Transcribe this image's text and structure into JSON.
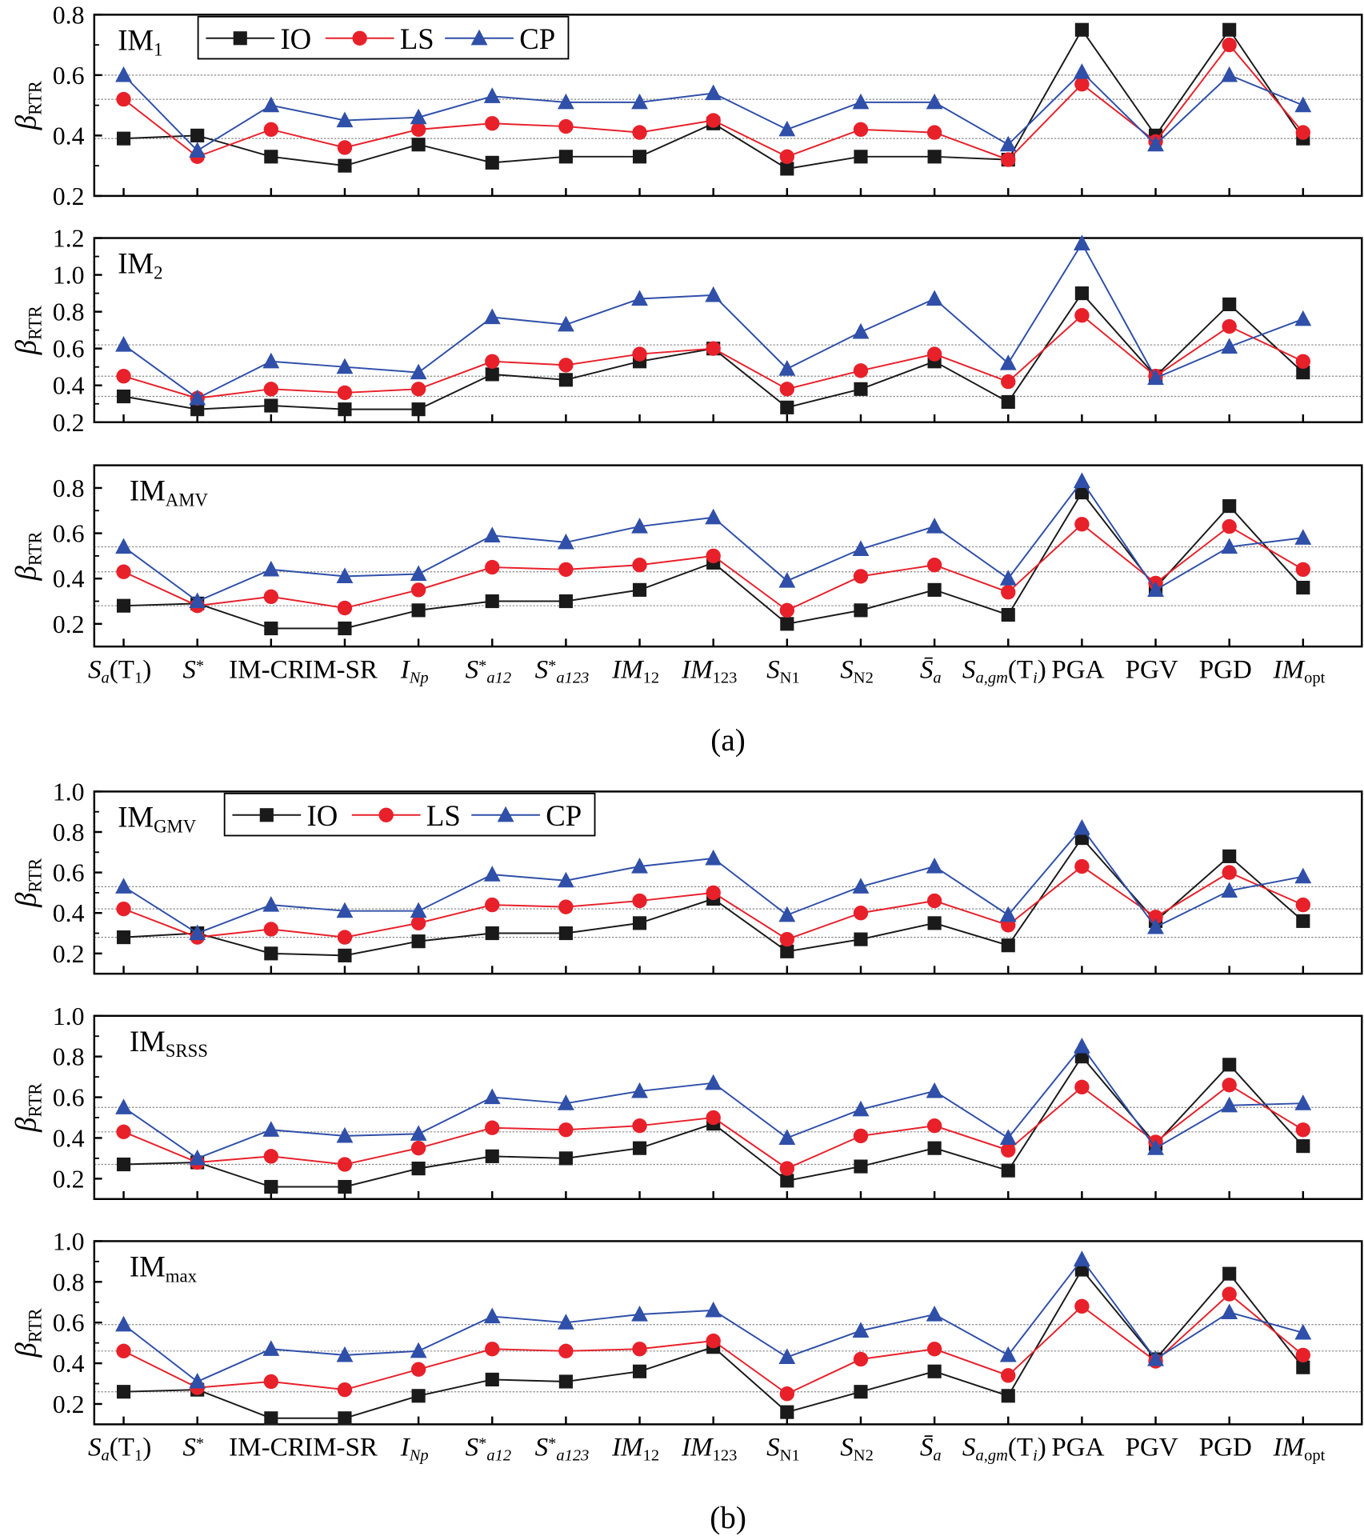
{
  "colors": {
    "IO": "#1a1a1a",
    "LS": "#e8202a",
    "CP": "#2f4fa8",
    "refline": "#888888"
  },
  "legend": [
    "IO",
    "LS",
    "CP"
  ],
  "captions": [
    "(a)",
    "(b)"
  ],
  "ylabel": {
    "main": "β",
    "sub": "RTR"
  },
  "x_labels": [
    [
      {
        "t": "S",
        "i": 1
      },
      {
        "t": "a",
        "i": 1,
        "sub": 1
      },
      {
        "t": "(T"
      },
      {
        "t": "1",
        "sub": 1
      },
      {
        "t": ")"
      }
    ],
    [
      {
        "t": "S",
        "i": 1
      },
      {
        "t": "*",
        "sup": 1
      }
    ],
    [
      {
        "t": "IM-CR"
      }
    ],
    [
      {
        "t": "IM-SR"
      }
    ],
    [
      {
        "t": "I",
        "i": 1
      },
      {
        "t": "Np",
        "i": 1,
        "sub": 1
      }
    ],
    [
      {
        "t": "S",
        "i": 1
      },
      {
        "t": "*",
        "sup": 1
      },
      {
        "t": "a12",
        "i": 1,
        "sub": 1
      }
    ],
    [
      {
        "t": "S",
        "i": 1
      },
      {
        "t": "*",
        "sup": 1
      },
      {
        "t": "a123",
        "i": 1,
        "sub": 1
      }
    ],
    [
      {
        "t": "IM",
        "i": 1
      },
      {
        "t": "12",
        "sub": 1
      }
    ],
    [
      {
        "t": "IM",
        "i": 1
      },
      {
        "t": "123",
        "sub": 1
      }
    ],
    [
      {
        "t": "S",
        "i": 1
      },
      {
        "t": "N1",
        "sub": 1
      }
    ],
    [
      {
        "t": "S",
        "i": 1
      },
      {
        "t": "N2",
        "sub": 1
      }
    ],
    [
      {
        "t": "S̄",
        "i": 1
      },
      {
        "t": "a",
        "i": 1,
        "sub": 1
      }
    ],
    [
      {
        "t": "S",
        "i": 1
      },
      {
        "t": "a,gm",
        "i": 1,
        "sub": 1
      },
      {
        "t": "(T"
      },
      {
        "t": "i",
        "i": 1,
        "sub": 1
      },
      {
        "t": ")"
      }
    ],
    [
      {
        "t": "PGA"
      }
    ],
    [
      {
        "t": "PGV"
      }
    ],
    [
      {
        "t": "PGD"
      }
    ],
    [
      {
        "t": "IM",
        "i": 1
      },
      {
        "t": "opt",
        "sub": 1
      }
    ]
  ],
  "chart_data": [
    {
      "type": "line",
      "title": {
        "main": "IM",
        "sub": "1"
      },
      "ylim": [
        0.2,
        0.8
      ],
      "yticks": [
        "0.2",
        "0.4",
        "0.6",
        "0.8"
      ],
      "ytick_values": [
        0.2,
        0.4,
        0.6,
        0.8
      ],
      "legend": true,
      "series": [
        {
          "name": "IO",
          "values": [
            0.39,
            0.4,
            0.33,
            0.3,
            0.37,
            0.31,
            0.33,
            0.33,
            0.44,
            0.29,
            0.33,
            0.33,
            0.32,
            0.75,
            0.4,
            0.75,
            0.39
          ]
        },
        {
          "name": "LS",
          "values": [
            0.52,
            0.33,
            0.42,
            0.36,
            0.42,
            0.44,
            0.43,
            0.41,
            0.45,
            0.33,
            0.42,
            0.41,
            0.32,
            0.57,
            0.38,
            0.7,
            0.41
          ]
        },
        {
          "name": "CP",
          "values": [
            0.6,
            0.35,
            0.5,
            0.45,
            0.46,
            0.53,
            0.51,
            0.51,
            0.54,
            0.42,
            0.51,
            0.51,
            0.37,
            0.61,
            0.37,
            0.6,
            0.5
          ]
        }
      ]
    },
    {
      "type": "line",
      "title": {
        "main": "IM",
        "sub": "2"
      },
      "ylim": [
        0.2,
        1.2
      ],
      "yticks": [
        "0.2",
        "0.4",
        "0.6",
        "0.8",
        "1.0",
        "1.2"
      ],
      "ytick_values": [
        0.2,
        0.4,
        0.6,
        0.8,
        1.0,
        1.2
      ],
      "legend": false,
      "series": [
        {
          "name": "IO",
          "values": [
            0.34,
            0.27,
            0.29,
            0.27,
            0.27,
            0.46,
            0.43,
            0.53,
            0.6,
            0.28,
            0.38,
            0.53,
            0.31,
            0.9,
            0.45,
            0.84,
            0.47
          ]
        },
        {
          "name": "LS",
          "values": [
            0.45,
            0.33,
            0.38,
            0.36,
            0.38,
            0.53,
            0.51,
            0.57,
            0.6,
            0.38,
            0.48,
            0.57,
            0.42,
            0.78,
            0.45,
            0.72,
            0.53
          ]
        },
        {
          "name": "CP",
          "values": [
            0.62,
            0.33,
            0.53,
            0.5,
            0.47,
            0.77,
            0.73,
            0.87,
            0.89,
            0.49,
            0.69,
            0.87,
            0.52,
            1.17,
            0.44,
            0.61,
            0.76
          ]
        }
      ]
    },
    {
      "type": "line",
      "title": {
        "main": "IM",
        "sub": "AMV"
      },
      "ylim": [
        0.1,
        0.9
      ],
      "yticks": [
        "0.2",
        "0.4",
        "0.6",
        "0.8"
      ],
      "ytick_values": [
        0.2,
        0.4,
        0.6,
        0.8
      ],
      "legend": false,
      "series": [
        {
          "name": "IO",
          "values": [
            0.28,
            0.29,
            0.18,
            0.18,
            0.26,
            0.3,
            0.3,
            0.35,
            0.47,
            0.2,
            0.26,
            0.35,
            0.24,
            0.78,
            0.36,
            0.72,
            0.36
          ]
        },
        {
          "name": "LS",
          "values": [
            0.43,
            0.28,
            0.32,
            0.27,
            0.35,
            0.45,
            0.44,
            0.46,
            0.5,
            0.26,
            0.41,
            0.46,
            0.34,
            0.64,
            0.38,
            0.63,
            0.44
          ]
        },
        {
          "name": "CP",
          "values": [
            0.54,
            0.3,
            0.44,
            0.41,
            0.42,
            0.59,
            0.56,
            0.63,
            0.67,
            0.39,
            0.53,
            0.63,
            0.4,
            0.83,
            0.35,
            0.54,
            0.58
          ]
        }
      ]
    },
    {
      "type": "line",
      "title": {
        "main": "IM",
        "sub": "GMV"
      },
      "ylim": [
        0.1,
        1.0
      ],
      "yticks": [
        "0.2",
        "0.4",
        "0.6",
        "0.8",
        "1.0"
      ],
      "ytick_values": [
        0.2,
        0.4,
        0.6,
        0.8,
        1.0
      ],
      "legend": true,
      "series": [
        {
          "name": "IO",
          "values": [
            0.28,
            0.3,
            0.2,
            0.19,
            0.26,
            0.3,
            0.3,
            0.35,
            0.47,
            0.21,
            0.27,
            0.35,
            0.24,
            0.77,
            0.36,
            0.68,
            0.36
          ]
        },
        {
          "name": "LS",
          "values": [
            0.42,
            0.28,
            0.32,
            0.28,
            0.35,
            0.44,
            0.43,
            0.46,
            0.5,
            0.27,
            0.4,
            0.46,
            0.34,
            0.63,
            0.38,
            0.6,
            0.44
          ]
        },
        {
          "name": "CP",
          "values": [
            0.53,
            0.3,
            0.44,
            0.41,
            0.41,
            0.59,
            0.56,
            0.63,
            0.67,
            0.39,
            0.53,
            0.63,
            0.39,
            0.82,
            0.33,
            0.51,
            0.58
          ]
        }
      ]
    },
    {
      "type": "line",
      "title": {
        "main": "IM",
        "sub": "SRSS"
      },
      "ylim": [
        0.1,
        1.0
      ],
      "yticks": [
        "0.2",
        "0.4",
        "0.6",
        "0.8",
        "1.0"
      ],
      "ytick_values": [
        0.2,
        0.4,
        0.6,
        0.8,
        1.0
      ],
      "legend": false,
      "series": [
        {
          "name": "IO",
          "values": [
            0.27,
            0.28,
            0.16,
            0.16,
            0.25,
            0.31,
            0.3,
            0.35,
            0.47,
            0.19,
            0.26,
            0.35,
            0.24,
            0.8,
            0.37,
            0.76,
            0.36
          ]
        },
        {
          "name": "LS",
          "values": [
            0.43,
            0.28,
            0.31,
            0.27,
            0.35,
            0.45,
            0.44,
            0.46,
            0.5,
            0.25,
            0.41,
            0.46,
            0.34,
            0.65,
            0.38,
            0.66,
            0.44
          ]
        },
        {
          "name": "CP",
          "values": [
            0.55,
            0.3,
            0.44,
            0.41,
            0.42,
            0.6,
            0.57,
            0.63,
            0.67,
            0.4,
            0.54,
            0.63,
            0.4,
            0.85,
            0.35,
            0.56,
            0.57
          ]
        }
      ]
    },
    {
      "type": "line",
      "title": {
        "main": "IM",
        "sub": "max"
      },
      "ylim": [
        0.1,
        1.0
      ],
      "yticks": [
        "0.2",
        "0.4",
        "0.6",
        "0.8",
        "1.0"
      ],
      "ytick_values": [
        0.2,
        0.4,
        0.6,
        0.8,
        1.0
      ],
      "legend": false,
      "series": [
        {
          "name": "IO",
          "values": [
            0.26,
            0.27,
            0.13,
            0.13,
            0.24,
            0.32,
            0.31,
            0.36,
            0.48,
            0.16,
            0.26,
            0.36,
            0.24,
            0.86,
            0.42,
            0.84,
            0.38
          ]
        },
        {
          "name": "LS",
          "values": [
            0.46,
            0.28,
            0.31,
            0.27,
            0.37,
            0.47,
            0.46,
            0.47,
            0.51,
            0.25,
            0.42,
            0.47,
            0.34,
            0.68,
            0.41,
            0.74,
            0.44
          ]
        },
        {
          "name": "CP",
          "values": [
            0.59,
            0.31,
            0.47,
            0.44,
            0.46,
            0.63,
            0.6,
            0.64,
            0.66,
            0.43,
            0.56,
            0.64,
            0.44,
            0.91,
            0.42,
            0.65,
            0.55
          ]
        }
      ]
    }
  ]
}
